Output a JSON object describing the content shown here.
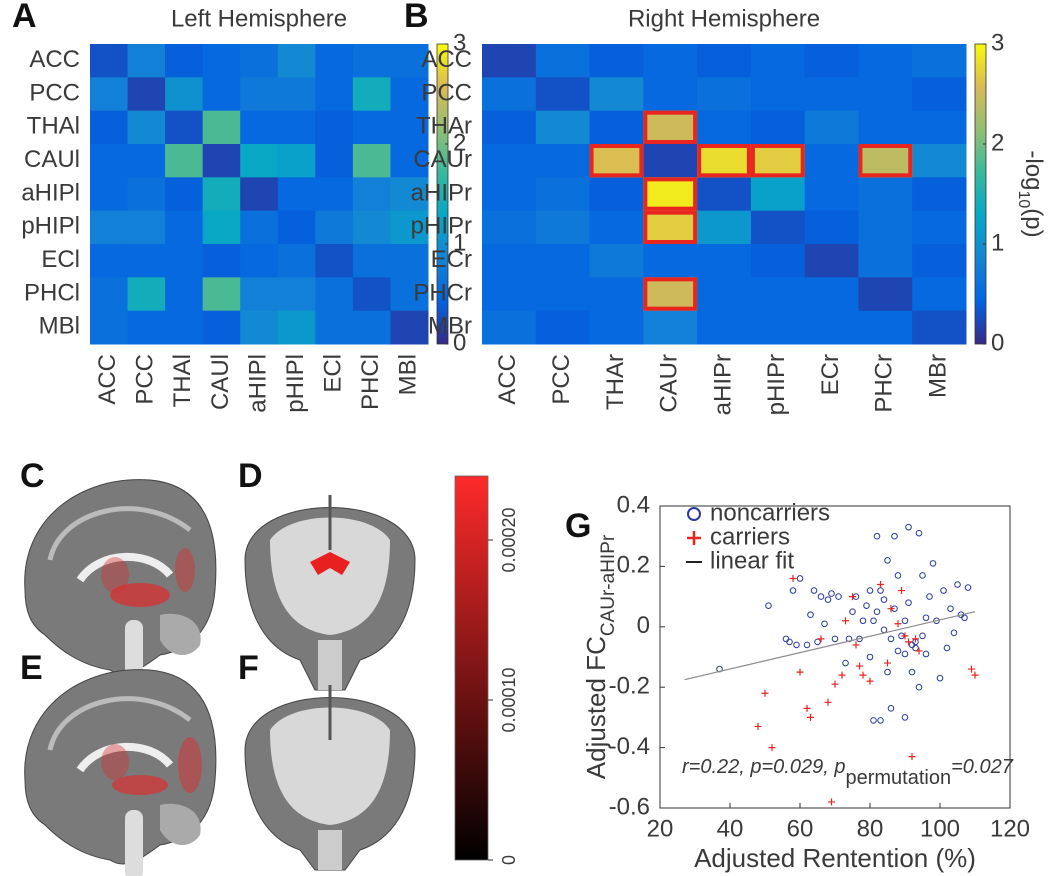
{
  "chart_data": [
    {
      "type": "heatmap",
      "panel": "A",
      "title": "Left Hemisphere",
      "categories": [
        "ACC",
        "PCC",
        "THAl",
        "CAUl",
        "aHIPl",
        "pHIPl",
        "ECl",
        "PHCl",
        "MBl"
      ],
      "values": [
        [
          0.3,
          0.8,
          0.4,
          0.5,
          0.6,
          0.9,
          0.5,
          0.6,
          0.6
        ],
        [
          0.8,
          0.2,
          1.0,
          0.5,
          0.7,
          0.7,
          0.5,
          1.4,
          0.5
        ],
        [
          0.4,
          0.9,
          0.3,
          1.8,
          0.5,
          0.5,
          0.4,
          0.5,
          0.5
        ],
        [
          0.5,
          0.5,
          1.8,
          0.2,
          1.3,
          1.2,
          0.4,
          1.8,
          0.5
        ],
        [
          0.5,
          0.6,
          0.4,
          1.4,
          0.2,
          0.5,
          0.5,
          0.8,
          0.9
        ],
        [
          0.8,
          0.8,
          0.5,
          1.3,
          0.6,
          0.4,
          0.7,
          0.9,
          1.1
        ],
        [
          0.5,
          0.5,
          0.5,
          0.4,
          0.5,
          0.6,
          0.3,
          0.6,
          0.6
        ],
        [
          0.6,
          1.4,
          0.5,
          1.8,
          0.8,
          0.8,
          0.6,
          0.3,
          0.6
        ],
        [
          0.6,
          0.5,
          0.5,
          0.4,
          0.9,
          1.1,
          0.6,
          0.6,
          0.2
        ]
      ],
      "colormap": [
        "#352a87",
        "#0363e1",
        "#1485d4",
        "#06a7c6",
        "#38b99e",
        "#92bf73",
        "#d9ba56",
        "#f8fa0d"
      ],
      "clim": [
        0,
        3
      ],
      "cticks": [
        0,
        1,
        2,
        3
      ],
      "colorbar_label": [
        "-log",
        "10",
        "(p)"
      ]
    },
    {
      "type": "heatmap",
      "panel": "B",
      "title": "Right Hemisphere",
      "categories": [
        "ACC",
        "PCC",
        "THAr",
        "CAUr",
        "aHIPr",
        "pHIPr",
        "ECr",
        "PHCr",
        "MBr"
      ],
      "values": [
        [
          0.2,
          0.6,
          0.4,
          0.5,
          0.4,
          0.5,
          0.4,
          0.5,
          0.6
        ],
        [
          0.6,
          0.3,
          0.9,
          0.5,
          0.6,
          0.5,
          0.5,
          0.5,
          0.4
        ],
        [
          0.4,
          0.9,
          0.4,
          2.5,
          0.5,
          0.4,
          0.7,
          0.5,
          0.5
        ],
        [
          0.5,
          0.5,
          2.6,
          0.2,
          2.8,
          2.7,
          0.5,
          2.4,
          0.9
        ],
        [
          0.5,
          0.6,
          0.4,
          2.9,
          0.3,
          1.2,
          0.5,
          0.6,
          0.4
        ],
        [
          0.6,
          0.7,
          0.5,
          2.7,
          1.1,
          0.3,
          0.4,
          0.6,
          0.5
        ],
        [
          0.5,
          0.5,
          0.7,
          0.5,
          0.5,
          0.4,
          0.2,
          0.6,
          0.4
        ],
        [
          0.5,
          0.5,
          0.5,
          2.5,
          0.5,
          0.5,
          0.5,
          0.2,
          0.5
        ],
        [
          0.6,
          0.4,
          0.5,
          0.8,
          0.5,
          0.5,
          0.5,
          0.5,
          0.3
        ]
      ],
      "highlight_cells": [
        [
          2,
          3
        ],
        [
          3,
          2
        ],
        [
          3,
          4
        ],
        [
          3,
          5
        ],
        [
          3,
          7
        ],
        [
          4,
          3
        ],
        [
          5,
          3
        ],
        [
          7,
          3
        ]
      ],
      "highlight_color": "#e8251f",
      "colormap": [
        "#352a87",
        "#0363e1",
        "#1485d4",
        "#06a7c6",
        "#38b99e",
        "#92bf73",
        "#d9ba56",
        "#f8fa0d"
      ],
      "clim": [
        0,
        3
      ],
      "cticks": [
        0,
        1,
        2,
        3
      ],
      "colorbar_label": [
        "-log",
        "10",
        "(p)"
      ]
    },
    {
      "type": "colorbar",
      "panel_labels": [
        "C",
        "D",
        "E",
        "F"
      ],
      "colors": [
        "#000000",
        "#ff2a2a"
      ],
      "ylim": [
        0,
        0.00024
      ],
      "yticks": [
        0,
        {
          "value": 0.0001,
          "label": "0.00010"
        },
        {
          "value": 0.0002,
          "label": "0.00020"
        }
      ]
    },
    {
      "type": "scatter",
      "panel": "G",
      "xlabel": "Adjusted Rentention (%)",
      "ylabel": [
        "Adjusted FC",
        "CAUr-aHIPr"
      ],
      "xlim": [
        20,
        120
      ],
      "xticks": [
        20,
        40,
        60,
        80,
        100,
        120
      ],
      "ylim": [
        -0.6,
        0.4
      ],
      "yticks": [
        -0.6,
        -0.4,
        -0.2,
        0,
        0.2,
        0.4
      ],
      "legend": "upper left",
      "annotation": [
        "r=0.22, p=0.029, p",
        "permutation",
        "=0.027"
      ],
      "series": [
        {
          "name": "noncarriers",
          "color": "#2b3a9e",
          "marker": "circle",
          "x": [
            37,
            51,
            56,
            57,
            58,
            59,
            60,
            62,
            63,
            64,
            65,
            66,
            67,
            68,
            69,
            70,
            71,
            73,
            74,
            75,
            76,
            77,
            78,
            79,
            80,
            80,
            81,
            81,
            82,
            82,
            83,
            83,
            84,
            84,
            85,
            85,
            86,
            86,
            87,
            87,
            88,
            88,
            89,
            90,
            90,
            90,
            91,
            91,
            92,
            92,
            93,
            93,
            94,
            94,
            95,
            95,
            96,
            96,
            97,
            98,
            99,
            100,
            101,
            102,
            103,
            104,
            105,
            106,
            107,
            108
          ],
          "values": [
            -0.14,
            0.07,
            -0.04,
            -0.05,
            0.12,
            -0.06,
            0.16,
            -0.06,
            0.04,
            0.12,
            -0.05,
            0.1,
            0.01,
            0.09,
            0.11,
            -0.04,
            0.1,
            -0.12,
            -0.04,
            0.05,
            0.1,
            -0.04,
            0.02,
            0.07,
            0.12,
            -0.1,
            0.02,
            -0.31,
            0.3,
            0.05,
            -0.31,
            0.12,
            -0.01,
            0.09,
            0.22,
            -0.15,
            -0.04,
            -0.27,
            0.3,
            0.06,
            -0.08,
            0.17,
            -0.03,
            0.02,
            -0.09,
            -0.3,
            0.33,
            0.08,
            -0.06,
            -0.15,
            -0.05,
            -0.07,
            0.31,
            -0.2,
            0.17,
            -0.03,
            0.03,
            -0.09,
            0.1,
            0.21,
            0.02,
            -0.17,
            0.12,
            -0.07,
            0.06,
            -0.02,
            0.14,
            0.04,
            0.03,
            0.13
          ]
        },
        {
          "name": "carriers",
          "color": "#e8251f",
          "marker": "plus",
          "x": [
            50,
            48,
            52,
            58,
            60,
            62,
            63,
            66,
            68,
            69,
            70,
            72,
            73,
            75,
            76,
            77,
            78,
            80,
            83,
            85,
            86,
            88,
            89,
            90,
            91,
            92,
            93,
            94,
            109,
            110
          ],
          "values": [
            -0.22,
            -0.33,
            -0.4,
            0.16,
            -0.15,
            -0.27,
            -0.3,
            -0.04,
            -0.25,
            -0.58,
            -0.19,
            -0.16,
            0.02,
            0.1,
            -0.06,
            -0.13,
            -0.16,
            -0.18,
            0.14,
            -0.12,
            0.06,
            0.01,
            0.12,
            -0.03,
            -0.05,
            -0.43,
            -0.04,
            -0.08,
            -0.14,
            -0.16
          ]
        },
        {
          "name": "linear fit",
          "color": "#8a8a8a",
          "marker": "line",
          "x": [
            27,
            110
          ],
          "values": [
            -0.175,
            0.05
          ]
        }
      ]
    }
  ]
}
